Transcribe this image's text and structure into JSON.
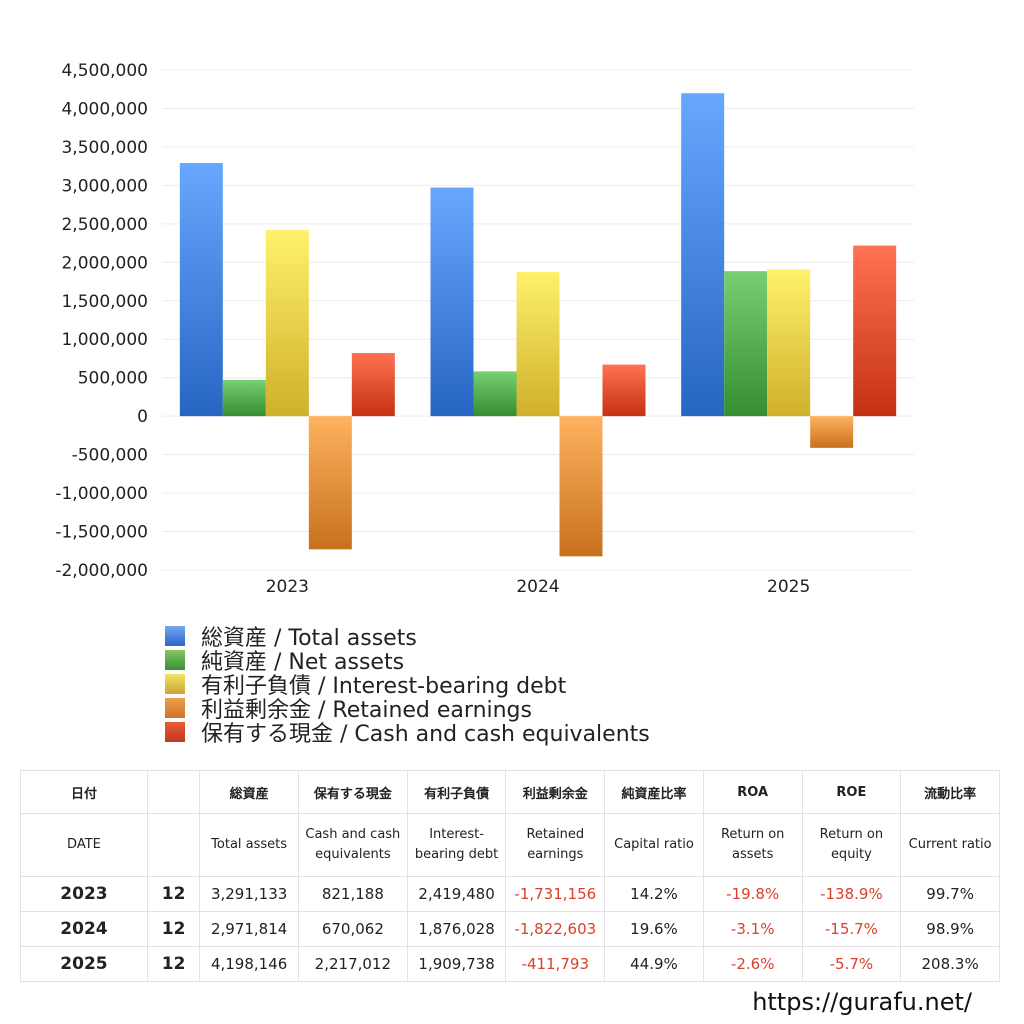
{
  "chart_data": {
    "type": "bar",
    "categories": [
      "2023",
      "2024",
      "2025"
    ],
    "series": [
      {
        "name": "総資産 / Total assets",
        "color": "#3f7fdc",
        "values": [
          3291133,
          2971814,
          4198146
        ]
      },
      {
        "name": "純資産 / Net assets",
        "color": "#4ea84a",
        "values": [
          470000,
          582000,
          1885000
        ]
      },
      {
        "name": "有利子負債 / Interest-bearing debt",
        "color": "#e8c944",
        "values": [
          2419480,
          1876028,
          1909738
        ]
      },
      {
        "name": "利益剰余金 / Retained earnings",
        "color": "#e08a37",
        "values": [
          -1731156,
          -1822603,
          -411793
        ]
      },
      {
        "name": "保有する現金 /  Cash and cash equivalents",
        "color": "#dd4a2a",
        "values": [
          821188,
          670062,
          2217012
        ]
      }
    ],
    "yticks": [
      "4,500,000",
      "4,000,000",
      "3,500,000",
      "3,000,000",
      "2,500,000",
      "2,000,000",
      "1,500,000",
      "1,000,000",
      "500,000",
      "0",
      "-500,000",
      "-1,000,000",
      "-1,500,000",
      "-2,000,000"
    ],
    "ylim": [
      -2000000,
      4500000
    ],
    "grid": true,
    "legend_position": "bottom"
  },
  "table": {
    "headers_ja": [
      "日付",
      "",
      "総資産",
      "保有する現金",
      "有利子負債",
      "利益剰余金",
      "純資産比率",
      "ROA",
      "ROE",
      "流動比率"
    ],
    "headers_en": [
      "DATE",
      "",
      "Total assets",
      "Cash and cash equivalents",
      "Interest-bearing debt",
      "Retained earnings",
      "Capital ratio",
      "Return on assets",
      "Return on equity",
      "Current ratio"
    ],
    "rows": [
      {
        "year": "2023",
        "month": "12",
        "total_assets": "3,291,133",
        "cash": "821,188",
        "debt": "2,419,480",
        "retained": "-1,731,156",
        "capital_ratio": "14.2%",
        "roa": "-19.8%",
        "roe": "-138.9%",
        "current_ratio": "99.7%"
      },
      {
        "year": "2024",
        "month": "12",
        "total_assets": "2,971,814",
        "cash": "670,062",
        "debt": "1,876,028",
        "retained": "-1,822,603",
        "capital_ratio": "19.6%",
        "roa": "-3.1%",
        "roe": "-15.7%",
        "current_ratio": "98.9%"
      },
      {
        "year": "2025",
        "month": "12",
        "total_assets": "4,198,146",
        "cash": "2,217,012",
        "debt": "1,909,738",
        "retained": "-411,793",
        "capital_ratio": "44.9%",
        "roa": "-2.6%",
        "roe": "-5.7%",
        "current_ratio": "208.3%"
      }
    ]
  },
  "watermark": "https://gurafu.net/"
}
